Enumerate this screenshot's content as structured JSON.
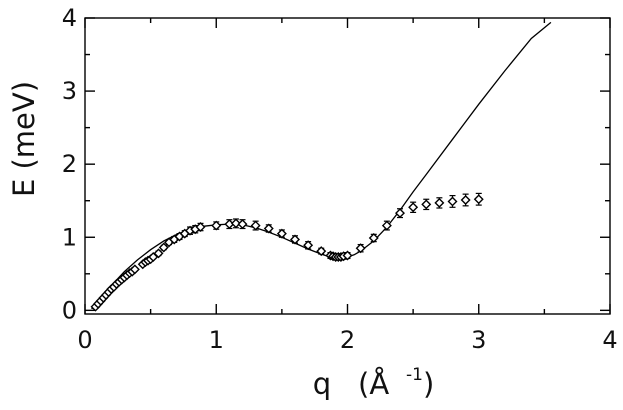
{
  "chart_data": {
    "type": "scatter",
    "xlabel": "q",
    "xlabel_unit": "(Å",
    "xlabel_unit_exp": "-1",
    "xlabel_unit_close": ")",
    "ylabel": "E  (meV)",
    "xlim": [
      0,
      4
    ],
    "ylim": [
      -0.05,
      4
    ],
    "xticks": [
      0,
      1,
      2,
      3,
      4
    ],
    "yticks": [
      0,
      1,
      2,
      3,
      4
    ],
    "grid": false,
    "series": [
      {
        "style": "line",
        "x": [
          0.05,
          0.1,
          0.2,
          0.3,
          0.4,
          0.5,
          0.6,
          0.7,
          0.8,
          0.9,
          1.0,
          1.1,
          1.2,
          1.3,
          1.4,
          1.5,
          1.6,
          1.7,
          1.8,
          1.85,
          1.9,
          1.95,
          2.0,
          2.05,
          2.1,
          2.2,
          2.3,
          2.4,
          2.5,
          2.6,
          2.8,
          3.0,
          3.2,
          3.4,
          3.55
        ],
        "y": [
          0.02,
          0.13,
          0.34,
          0.53,
          0.69,
          0.83,
          0.95,
          1.04,
          1.11,
          1.15,
          1.17,
          1.18,
          1.17,
          1.13,
          1.07,
          1.0,
          0.92,
          0.84,
          0.77,
          0.74,
          0.72,
          0.72,
          0.73,
          0.76,
          0.81,
          0.95,
          1.14,
          1.37,
          1.62,
          1.86,
          2.34,
          2.82,
          3.28,
          3.72,
          3.94
        ]
      },
      {
        "style": "markers",
        "marker": "diamond",
        "x": [
          0.08,
          0.1,
          0.12,
          0.14,
          0.16,
          0.18,
          0.2,
          0.22,
          0.24,
          0.26,
          0.28,
          0.3,
          0.32,
          0.34,
          0.36,
          0.38,
          0.44,
          0.46,
          0.48,
          0.5,
          0.52,
          0.56,
          0.6,
          0.64,
          0.68,
          0.72,
          0.76,
          0.8,
          0.84,
          0.88,
          1.0,
          1.1,
          1.15,
          1.2,
          1.3,
          1.4,
          1.5,
          1.6,
          1.7,
          1.8,
          1.87,
          1.89,
          1.91,
          1.93,
          1.95,
          1.97,
          2.0,
          2.1,
          2.2,
          2.3,
          2.4,
          2.5,
          2.6,
          2.7,
          2.8,
          2.9,
          3.0
        ],
        "y": [
          0.05,
          0.09,
          0.13,
          0.17,
          0.21,
          0.25,
          0.29,
          0.32,
          0.36,
          0.39,
          0.42,
          0.45,
          0.48,
          0.51,
          0.53,
          0.56,
          0.63,
          0.66,
          0.68,
          0.7,
          0.73,
          0.78,
          0.86,
          0.93,
          0.97,
          1.01,
          1.05,
          1.09,
          1.11,
          1.14,
          1.16,
          1.18,
          1.19,
          1.18,
          1.16,
          1.12,
          1.05,
          0.97,
          0.89,
          0.81,
          0.75,
          0.74,
          0.73,
          0.73,
          0.73,
          0.74,
          0.75,
          0.85,
          0.99,
          1.16,
          1.33,
          1.41,
          1.45,
          1.47,
          1.49,
          1.51,
          1.52
        ],
        "yerr": [
          0.02,
          0.02,
          0.02,
          0.02,
          0.02,
          0.02,
          0.02,
          0.02,
          0.02,
          0.02,
          0.02,
          0.02,
          0.02,
          0.02,
          0.02,
          0.02,
          0.02,
          0.02,
          0.02,
          0.02,
          0.02,
          0.03,
          0.03,
          0.03,
          0.04,
          0.04,
          0.04,
          0.05,
          0.05,
          0.05,
          0.05,
          0.06,
          0.06,
          0.06,
          0.06,
          0.05,
          0.05,
          0.05,
          0.05,
          0.04,
          0.04,
          0.04,
          0.04,
          0.04,
          0.04,
          0.04,
          0.04,
          0.05,
          0.05,
          0.06,
          0.06,
          0.07,
          0.07,
          0.07,
          0.08,
          0.08,
          0.08
        ]
      }
    ]
  }
}
